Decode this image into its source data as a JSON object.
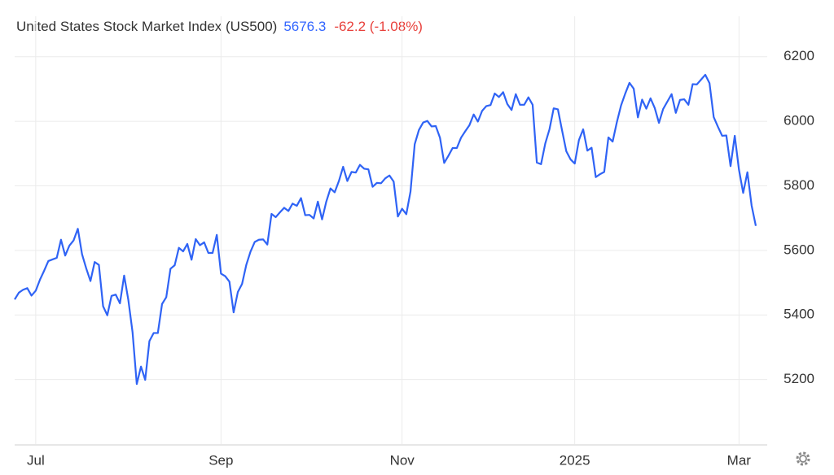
{
  "chart_data": {
    "type": "line",
    "title": "United States Stock Market Index (US500)",
    "price": 5676.3,
    "change": "-62.2 (-1.08%)",
    "categories": [
      null,
      null,
      null,
      null,
      null,
      "Jul",
      null,
      null,
      null,
      null,
      null,
      null,
      null,
      null,
      null,
      null,
      null,
      null,
      null,
      null,
      null,
      null,
      null,
      null,
      null,
      null,
      null,
      null,
      null,
      null,
      null,
      null,
      null,
      null,
      null,
      null,
      null,
      null,
      null,
      null,
      null,
      null,
      null,
      null,
      null,
      null,
      null,
      null,
      null,
      "Sep",
      null,
      null,
      null,
      null,
      null,
      null,
      null,
      null,
      null,
      null,
      null,
      null,
      null,
      null,
      null,
      null,
      null,
      null,
      null,
      null,
      null,
      null,
      null,
      null,
      null,
      null,
      null,
      null,
      null,
      null,
      null,
      null,
      null,
      null,
      null,
      null,
      null,
      null,
      null,
      null,
      null,
      null,
      "Nov",
      null,
      null,
      null,
      null,
      null,
      null,
      null,
      null,
      null,
      null,
      null,
      null,
      null,
      null,
      null,
      null,
      null,
      null,
      null,
      null,
      null,
      null,
      null,
      null,
      null,
      null,
      null,
      null,
      null,
      null,
      null,
      null,
      null,
      null,
      null,
      null,
      null,
      null,
      null,
      null,
      "2025",
      null,
      null,
      null,
      null,
      null,
      null,
      null,
      null,
      null,
      null,
      null,
      null,
      null,
      null,
      null,
      null,
      null,
      null,
      null,
      null,
      null,
      null,
      null,
      null,
      null,
      null,
      null,
      null,
      null,
      null,
      null,
      null,
      null,
      null,
      null,
      null,
      null,
      null,
      "Mar",
      null,
      null,
      null,
      null
    ],
    "series": [
      {
        "name": "US500",
        "color": "#2f63f5",
        "values": [
          5448,
          5469,
          5478,
          5483,
          5460,
          5475,
          5509,
          5537,
          5567,
          5572,
          5577,
          5633,
          5584,
          5615,
          5631,
          5667,
          5588,
          5544,
          5505,
          5564,
          5555,
          5427,
          5399,
          5459,
          5463,
          5436,
          5522,
          5446,
          5346,
          5186,
          5240,
          5199,
          5319,
          5344,
          5344,
          5434,
          5455,
          5543,
          5554,
          5608,
          5597,
          5620,
          5571,
          5635,
          5616,
          5625,
          5592,
          5592,
          5648,
          5528,
          5520,
          5503,
          5408,
          5471,
          5496,
          5555,
          5596,
          5626,
          5633,
          5634,
          5618,
          5713,
          5703,
          5718,
          5732,
          5722,
          5745,
          5738,
          5762,
          5709,
          5710,
          5699,
          5751,
          5696,
          5751,
          5792,
          5780,
          5815,
          5859,
          5815,
          5843,
          5841,
          5865,
          5853,
          5851,
          5797,
          5809,
          5808,
          5823,
          5832,
          5813,
          5705,
          5729,
          5712,
          5782,
          5929,
          5973,
          5996,
          6001,
          5984,
          5985,
          5949,
          5871,
          5893,
          5917,
          5917,
          5949,
          5969,
          5988,
          6021,
          5999,
          6032,
          6047,
          6050,
          6086,
          6075,
          6090,
          6053,
          6035,
          6084,
          6051,
          6051,
          6074,
          6051,
          5872,
          5867,
          5931,
          5975,
          6040,
          6037,
          5971,
          5907,
          5882,
          5869,
          5942,
          5975,
          5909,
          5918,
          5827,
          5836,
          5843,
          5950,
          5937,
          5997,
          6049,
          6086,
          6119,
          6101,
          6012,
          6067,
          6039,
          6071,
          6041,
          5995,
          6038,
          6061,
          6084,
          6026,
          6066,
          6068,
          6051,
          6115,
          6114,
          6129,
          6144,
          6118,
          6013,
          5983,
          5955,
          5956,
          5861,
          5955,
          5850,
          5778,
          5842,
          5739,
          5676
        ]
      }
    ],
    "ylim": [
      5000,
      6300
    ],
    "yticks": [
      5200,
      5400,
      5600,
      5800,
      6000,
      6200
    ],
    "grid": true
  }
}
